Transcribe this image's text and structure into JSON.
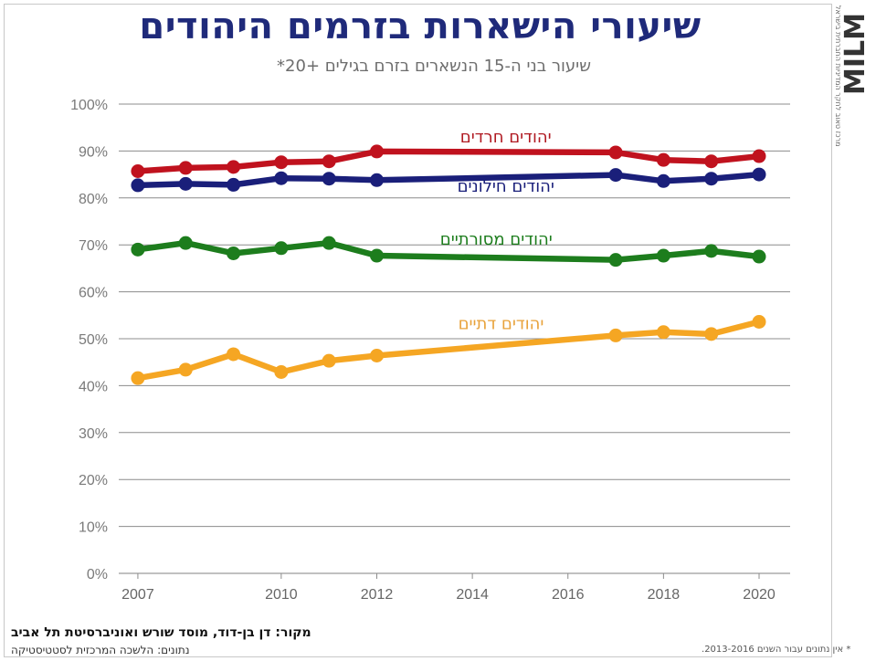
{
  "title": "שיעורי הישארות בזרמים היהודים",
  "subtitle": "שיעור בני ה-15 הנשארים בזרם בגילים +20*",
  "logo": {
    "brand": "MILM",
    "subtext": "מרכז טאוב לחקר המדיניות החברתית בישראל"
  },
  "source": "מקור: דן בן-דוד, מוסד שורש ואוניברסיטת תל אביב",
  "data_source": "נתונים: הלשכה המרכזית לסטטיסטיקה",
  "footnote": "* אין נתונים עבור השנים 2013-2016.",
  "chart_data": {
    "type": "line",
    "xlabel": "",
    "ylabel": "",
    "xlim": [
      2007,
      2020
    ],
    "ylim": [
      0,
      100
    ],
    "x_ticks": [
      2007,
      2010,
      2012,
      2014,
      2016,
      2018,
      2020
    ],
    "y_ticks": [
      0,
      10,
      20,
      30,
      40,
      50,
      60,
      70,
      80,
      90,
      100
    ],
    "y_tick_labels": [
      "0%",
      "10%",
      "20%",
      "30%",
      "40%",
      "50%",
      "60%",
      "70%",
      "80%",
      "90%",
      "100%"
    ],
    "grid": true,
    "x": [
      2007,
      2008,
      2009,
      2010,
      2011,
      2012,
      2017,
      2018,
      2019,
      2020
    ],
    "series": [
      {
        "name": "יהודים חרדים",
        "color": "#c0121e",
        "label_color": "#b01a22",
        "values": [
          85.7,
          86.4,
          86.6,
          87.6,
          87.8,
          89.9,
          89.7,
          88.1,
          87.8,
          88.9
        ]
      },
      {
        "name": "יהודים חילונים",
        "color": "#1a1f7a",
        "label_color": "#1a1f7a",
        "values": [
          82.7,
          83.0,
          82.8,
          84.2,
          84.1,
          83.8,
          84.9,
          83.6,
          84.1,
          85.0
        ]
      },
      {
        "name": "יהודים מסורתיים",
        "color": "#1d7d1d",
        "label_color": "#1d7d1d",
        "values": [
          69.0,
          70.4,
          68.2,
          69.3,
          70.4,
          67.7,
          66.8,
          67.7,
          68.7,
          67.5
        ]
      },
      {
        "name": "יהודים דתיים",
        "color": "#f5a623",
        "label_color": "#e8a23a",
        "values": [
          41.6,
          43.4,
          46.7,
          42.9,
          45.3,
          46.4,
          50.7,
          51.4,
          51.0,
          53.6
        ]
      }
    ]
  }
}
